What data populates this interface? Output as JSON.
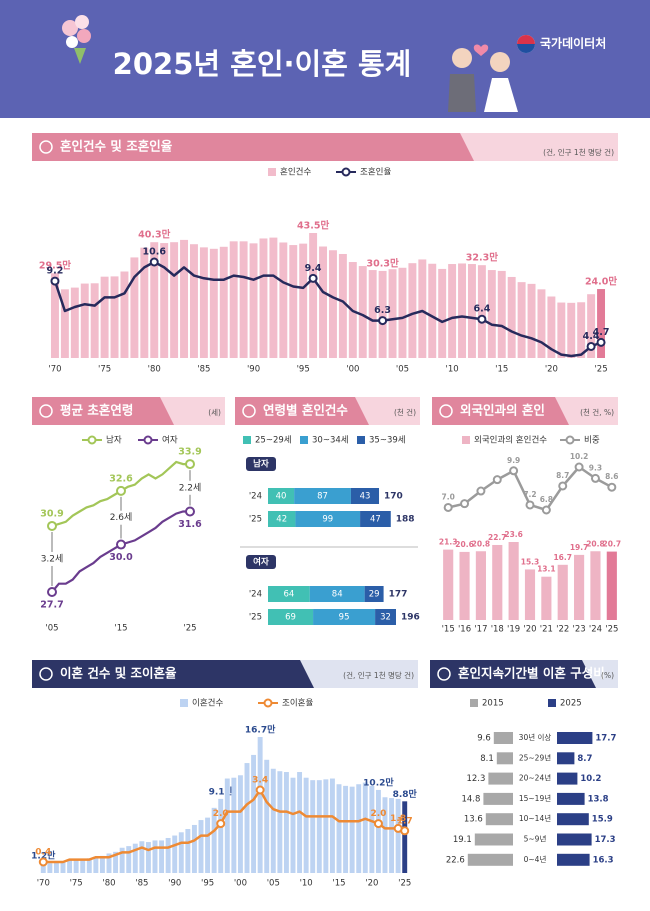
{
  "header": {
    "title": "2025년 혼인·이혼 통계",
    "logo": "국가데이터처"
  },
  "chart_data": [
    {
      "type": "bar-line",
      "title": "혼인건수 및 조혼인율",
      "unit_note": "(건, 인구 1천 명당 건)",
      "categories": [
        "'70",
        null,
        null,
        null,
        null,
        "'75",
        null,
        null,
        null,
        null,
        "'80",
        null,
        null,
        null,
        null,
        "'85",
        null,
        null,
        null,
        null,
        "'90",
        null,
        null,
        null,
        null,
        "'95",
        null,
        null,
        null,
        null,
        "'00",
        null,
        null,
        null,
        null,
        "'05",
        null,
        null,
        null,
        null,
        "'10",
        null,
        null,
        null,
        null,
        "'15",
        null,
        null,
        null,
        null,
        "'20",
        null,
        null,
        null,
        null,
        "'25"
      ],
      "series": [
        {
          "name": "혼인건수",
          "color": "#f2bccb",
          "highlight_color": "#e27a97",
          "values": [
            29.5,
            23.9,
            24.5,
            25.9,
            26.0,
            28.3,
            28.4,
            30.1,
            35.0,
            38.4,
            40.3,
            40.0,
            40.3,
            41.1,
            39.6,
            38.5,
            38.0,
            38.7,
            40.6,
            40.6,
            39.9,
            41.6,
            41.9,
            40.2,
            39.3,
            39.8,
            43.5,
            38.8,
            37.5,
            36.2,
            33.4,
            32.0,
            30.6,
            30.3,
            30.9,
            31.4,
            33.0,
            34.3,
            32.8,
            31.0,
            32.7,
            32.9,
            32.7,
            32.3,
            30.6,
            30.3,
            28.2,
            26.4,
            25.8,
            23.9,
            21.4,
            19.3,
            19.2,
            19.4,
            22.2,
            24.0
          ],
          "value_labels": [
            "29.5만",
            null,
            null,
            null,
            null,
            null,
            null,
            null,
            null,
            null,
            "40.3만",
            null,
            null,
            null,
            null,
            null,
            null,
            null,
            null,
            null,
            null,
            null,
            null,
            null,
            null,
            null,
            "43.5만",
            null,
            null,
            null,
            null,
            null,
            null,
            "30.3만",
            null,
            null,
            null,
            null,
            null,
            null,
            null,
            null,
            null,
            "32.3만",
            null,
            null,
            null,
            null,
            null,
            null,
            null,
            null,
            null,
            null,
            null,
            "24.0만"
          ]
        },
        {
          "name": "조혼인율",
          "color": "#272a5c",
          "axis": "y2",
          "values": [
            9.2,
            7.0,
            7.3,
            7.5,
            7.4,
            8.0,
            8.0,
            8.3,
            9.5,
            10.2,
            10.6,
            10.2,
            9.6,
            10.2,
            9.6,
            9.4,
            9.3,
            9.3,
            9.6,
            9.5,
            9.3,
            9.6,
            9.6,
            9.1,
            8.8,
            8.7,
            9.4,
            8.4,
            8.0,
            7.7,
            7.0,
            6.7,
            6.3,
            6.3,
            6.4,
            6.5,
            6.8,
            7.0,
            6.6,
            6.2,
            6.5,
            6.6,
            6.5,
            6.4,
            6.0,
            5.9,
            5.5,
            5.2,
            5.0,
            4.7,
            4.2,
            3.8,
            3.7,
            3.8,
            4.4,
            4.7
          ],
          "value_labels": [
            "9.2",
            null,
            null,
            null,
            null,
            null,
            null,
            null,
            null,
            null,
            "10.6",
            null,
            null,
            null,
            null,
            null,
            null,
            null,
            null,
            null,
            null,
            null,
            null,
            null,
            null,
            null,
            "9.4",
            null,
            null,
            null,
            null,
            null,
            null,
            "6.3",
            null,
            null,
            null,
            null,
            null,
            null,
            null,
            null,
            null,
            "6.4",
            null,
            null,
            null,
            null,
            null,
            null,
            null,
            null,
            null,
            null,
            "4.4",
            "4.7"
          ]
        }
      ]
    },
    {
      "type": "line",
      "title": "평균 초혼연령",
      "unit_note": "(세)",
      "categories": [
        "'05",
        null,
        null,
        null,
        null,
        null,
        null,
        null,
        null,
        null,
        "'15",
        null,
        null,
        null,
        null,
        null,
        null,
        null,
        null,
        null,
        "'25"
      ],
      "series": [
        {
          "name": "남자",
          "color": "#a3c658",
          "values": [
            30.9,
            31.0,
            31.1,
            31.4,
            31.6,
            31.8,
            31.9,
            32.1,
            32.2,
            32.4,
            32.6,
            32.8,
            32.9,
            33.2,
            33.4,
            33.2,
            33.4,
            33.7,
            34.0,
            33.9,
            33.9
          ],
          "value_labels": [
            "30.9",
            null,
            null,
            null,
            null,
            null,
            null,
            null,
            null,
            null,
            "32.6",
            null,
            null,
            null,
            null,
            null,
            null,
            null,
            null,
            null,
            "33.9"
          ]
        },
        {
          "name": "여자",
          "color": "#6a3c8e",
          "values": [
            27.7,
            28.1,
            28.1,
            28.3,
            28.7,
            28.9,
            29.1,
            29.4,
            29.6,
            29.8,
            30.0,
            30.1,
            30.2,
            30.4,
            30.6,
            30.8,
            31.1,
            31.3,
            31.5,
            31.6,
            31.6
          ],
          "value_labels": [
            "27.7",
            null,
            null,
            null,
            null,
            null,
            null,
            null,
            null,
            null,
            "30.0",
            null,
            null,
            null,
            null,
            null,
            null,
            null,
            null,
            null,
            "31.6"
          ]
        }
      ],
      "annotations": [
        "3.2세",
        "2.6세",
        "2.2세"
      ]
    },
    {
      "type": "stacked-bar",
      "title": "연령별 혼인건수",
      "unit_note": "(천 건)",
      "panels": [
        "남자",
        "여자"
      ],
      "categories": [
        "'24",
        "'25"
      ],
      "series": [
        {
          "name": "25~29세",
          "color": "#41c0b4",
          "values": [
            [
              40,
              42
            ],
            [
              64,
              69
            ]
          ]
        },
        {
          "name": "30~34세",
          "color": "#3a9fd0",
          "values": [
            [
              87,
              99
            ],
            [
              84,
              95
            ]
          ]
        },
        {
          "name": "35~39세",
          "color": "#2b5ea8",
          "values": [
            [
              43,
              47
            ],
            [
              29,
              32
            ]
          ]
        }
      ],
      "totals": [
        [
          170,
          188
        ],
        [
          177,
          196
        ]
      ]
    },
    {
      "type": "bar-line",
      "title": "외국인과의 혼인",
      "unit_note": "(천 건, %)",
      "categories": [
        "'15",
        "'16",
        "'17",
        "'18",
        "'19",
        "'20",
        "'21",
        "'22",
        "'23",
        "'24",
        "'25"
      ],
      "series": [
        {
          "name": "외국인과의 혼인건수",
          "color": "#eeb4c4",
          "highlight_color": "#e27a97",
          "values": [
            21.3,
            20.6,
            20.8,
            22.7,
            23.6,
            15.3,
            13.1,
            16.7,
            19.7,
            20.8,
            20.7
          ]
        },
        {
          "name": "비중",
          "color": "#9b9b9b",
          "axis": "y2",
          "values": [
            7.0,
            7.3,
            8.3,
            9.2,
            9.9,
            7.2,
            6.8,
            8.7,
            10.2,
            9.3,
            8.6
          ],
          "value_labels": [
            "7.0",
            null,
            null,
            null,
            "9.9",
            "7.2",
            "6.8",
            "8.7",
            "10.2",
            "9.3",
            "8.6"
          ]
        }
      ]
    },
    {
      "type": "bar-line",
      "title": "이혼 건수 및 조이혼율",
      "unit_note": "(건, 인구 1천 명당 건)",
      "categories": [
        "'70",
        null,
        null,
        null,
        null,
        "'75",
        null,
        null,
        null,
        null,
        "'80",
        null,
        null,
        null,
        null,
        "'85",
        null,
        null,
        null,
        null,
        "'90",
        null,
        null,
        null,
        null,
        "'95",
        null,
        null,
        null,
        null,
        "'00",
        null,
        null,
        null,
        null,
        "'05",
        null,
        null,
        null,
        null,
        "'10",
        null,
        null,
        null,
        null,
        "'15",
        null,
        null,
        null,
        null,
        "'20",
        null,
        null,
        null,
        null,
        "'25"
      ],
      "series": [
        {
          "name": "이혼건수",
          "color": "#bdd3f2",
          "highlight_color": "#2b3f86",
          "values": [
            1.2,
            1.2,
            1.3,
            1.4,
            1.6,
            1.7,
            1.7,
            1.8,
            2.0,
            2.1,
            2.4,
            2.6,
            3.1,
            3.3,
            3.6,
            3.9,
            3.8,
            4.0,
            4.0,
            4.3,
            4.6,
            5.0,
            5.4,
            5.9,
            6.5,
            6.8,
            8.0,
            9.1,
            11.6,
            11.7,
            12.0,
            13.5,
            14.5,
            16.7,
            13.9,
            12.8,
            12.5,
            12.4,
            11.7,
            12.4,
            11.7,
            11.4,
            11.4,
            11.5,
            11.6,
            10.9,
            10.7,
            10.6,
            10.9,
            11.1,
            10.7,
            10.2,
            9.3,
            9.2,
            9.1,
            8.8
          ],
          "value_labels": [
            "1.2만",
            null,
            null,
            null,
            null,
            null,
            null,
            null,
            null,
            null,
            null,
            null,
            null,
            null,
            null,
            null,
            null,
            null,
            null,
            null,
            null,
            null,
            null,
            null,
            null,
            null,
            null,
            "9.1만",
            null,
            null,
            null,
            null,
            null,
            "16.7만",
            null,
            null,
            null,
            null,
            null,
            null,
            null,
            null,
            null,
            null,
            null,
            null,
            null,
            null,
            null,
            null,
            null,
            "10.2만",
            null,
            null,
            null,
            "8.8만"
          ]
        },
        {
          "name": "조이혼율",
          "color": "#ee8a34",
          "axis": "y2",
          "values": [
            0.4,
            0.4,
            0.4,
            0.4,
            0.5,
            0.5,
            0.5,
            0.5,
            0.6,
            0.6,
            0.6,
            0.7,
            0.8,
            0.8,
            0.9,
            1.0,
            0.9,
            1.0,
            1.0,
            1.0,
            1.1,
            1.2,
            1.2,
            1.3,
            1.5,
            1.5,
            1.7,
            2.0,
            2.5,
            2.5,
            2.5,
            2.8,
            3.0,
            3.4,
            2.9,
            2.6,
            2.5,
            2.5,
            2.4,
            2.5,
            2.3,
            2.3,
            2.3,
            2.3,
            2.3,
            2.1,
            2.1,
            2.1,
            2.1,
            2.2,
            2.1,
            2.0,
            1.8,
            1.8,
            1.8,
            1.7
          ],
          "value_labels": [
            "0.4",
            null,
            null,
            null,
            null,
            null,
            null,
            null,
            null,
            null,
            null,
            null,
            null,
            null,
            null,
            null,
            null,
            null,
            null,
            null,
            null,
            null,
            null,
            null,
            null,
            null,
            null,
            "2.0",
            null,
            null,
            null,
            null,
            null,
            "3.4",
            null,
            null,
            null,
            null,
            null,
            null,
            null,
            null,
            null,
            null,
            null,
            null,
            null,
            null,
            null,
            null,
            null,
            "2.0",
            null,
            null,
            "1.8",
            "1.7"
          ]
        }
      ]
    },
    {
      "type": "butterfly",
      "title": "혼인지속기간별 이혼 구성비",
      "unit_note": "(%)",
      "categories": [
        "30년 이상",
        "25~29년",
        "20~24년",
        "15~19년",
        "10~14년",
        "5~9년",
        "0~4년"
      ],
      "series": [
        {
          "name": "2015",
          "color": "#a8a8a8",
          "values": [
            9.6,
            8.1,
            12.3,
            14.8,
            13.6,
            19.1,
            22.6
          ]
        },
        {
          "name": "2025",
          "color": "#2b3f86",
          "values": [
            17.7,
            8.7,
            10.2,
            13.8,
            15.9,
            17.3,
            16.3
          ]
        }
      ]
    }
  ]
}
